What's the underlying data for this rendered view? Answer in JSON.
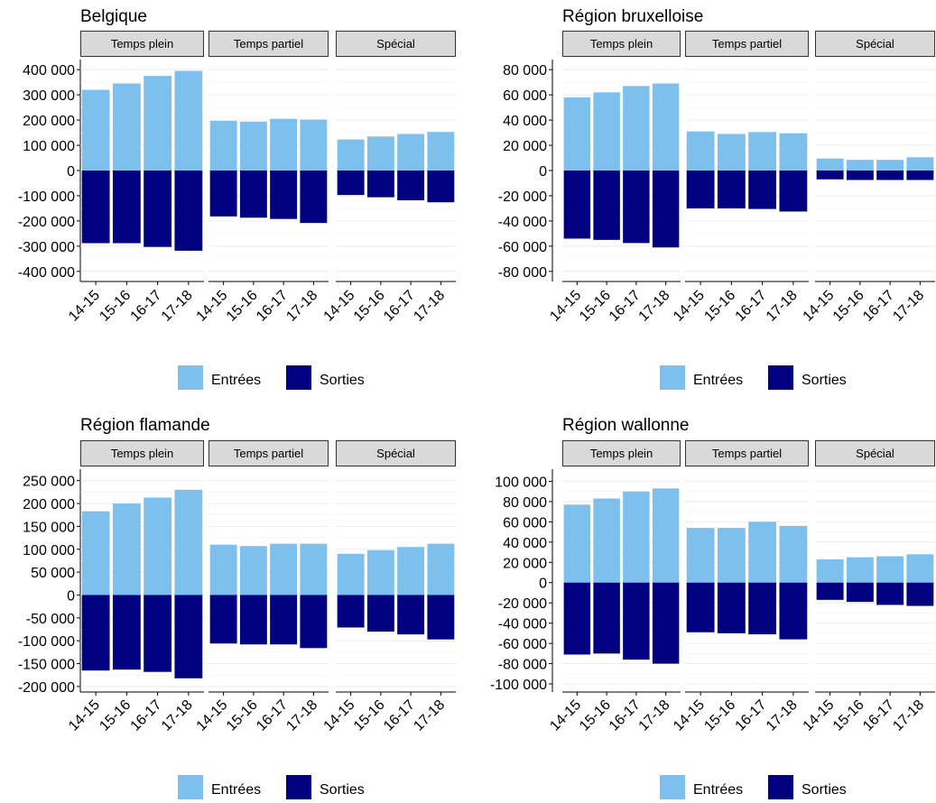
{
  "chart_data": [
    {
      "type": "bar",
      "title": "Belgique",
      "panels": [
        "Temps plein",
        "Temps partiel",
        "Spécial"
      ],
      "categories": [
        "14-15",
        "15-16",
        "16-17",
        "17-18"
      ],
      "ylim": [
        -440000,
        440000
      ],
      "yticks": [
        400000,
        300000,
        200000,
        100000,
        0,
        -100000,
        -200000,
        -300000,
        -400000
      ],
      "ytick_labels": [
        "400 000",
        "300 000",
        "200 000",
        "100 000",
        "0",
        "-100 000",
        "-200 000",
        "-300 000",
        "-400 000"
      ],
      "series": [
        {
          "name": "Entrées",
          "color": "#7dc0ee",
          "values": [
            [
              320000,
              345000,
              375000,
              395000
            ],
            [
              197000,
              194000,
              205000,
              202000
            ],
            [
              123000,
              135000,
              145000,
              153000
            ]
          ]
        },
        {
          "name": "Sorties",
          "color": "#000080",
          "values": [
            [
              -288000,
              -288000,
              -303000,
              -318000
            ],
            [
              -182000,
              -187000,
              -192000,
              -208000
            ],
            [
              -97000,
              -106000,
              -118000,
              -126000
            ]
          ]
        }
      ],
      "legend_position": "bottom"
    },
    {
      "type": "bar",
      "title": "Région bruxelloise",
      "panels": [
        "Temps plein",
        "Temps partiel",
        "Spécial"
      ],
      "categories": [
        "14-15",
        "15-16",
        "16-17",
        "17-18"
      ],
      "ylim": [
        -88000,
        88000
      ],
      "yticks": [
        80000,
        60000,
        40000,
        20000,
        0,
        -20000,
        -40000,
        -60000,
        -80000
      ],
      "ytick_labels": [
        "80 000",
        "60 000",
        "40 000",
        "20 000",
        "0",
        "-20 000",
        "-40 000",
        "-60 000",
        "-80 000"
      ],
      "series": [
        {
          "name": "Entrées",
          "color": "#7dc0ee",
          "values": [
            [
              58000,
              62000,
              67000,
              69000
            ],
            [
              31000,
              29000,
              30500,
              29500
            ],
            [
              9500,
              8500,
              8500,
              10500
            ]
          ]
        },
        {
          "name": "Sorties",
          "color": "#000080",
          "values": [
            [
              -54000,
              -55000,
              -57500,
              -61000
            ],
            [
              -30000,
              -30000,
              -30500,
              -32500
            ],
            [
              -7000,
              -7500,
              -7500,
              -7500
            ]
          ]
        }
      ],
      "legend_position": "bottom"
    },
    {
      "type": "bar",
      "title": "Région flamande",
      "panels": [
        "Temps plein",
        "Temps partiel",
        "Spécial"
      ],
      "categories": [
        "14-15",
        "15-16",
        "16-17",
        "17-18"
      ],
      "ylim": [
        -212000,
        275000
      ],
      "yticks": [
        250000,
        200000,
        150000,
        100000,
        50000,
        0,
        -50000,
        -100000,
        -150000,
        -200000
      ],
      "ytick_labels": [
        "250 000",
        "200 000",
        "150 000",
        "100 000",
        "50 000",
        "0",
        "-50 000",
        "-100 000",
        "-150 000",
        "-200 000"
      ],
      "series": [
        {
          "name": "Entrées",
          "color": "#7dc0ee",
          "values": [
            [
              183000,
              200000,
              213000,
              230000
            ],
            [
              110000,
              107000,
              112000,
              112000
            ],
            [
              90000,
              98000,
              105000,
              112000
            ]
          ]
        },
        {
          "name": "Sorties",
          "color": "#000080",
          "values": [
            [
              -165000,
              -163000,
              -168000,
              -182000
            ],
            [
              -106000,
              -108000,
              -108000,
              -116000
            ],
            [
              -71000,
              -80000,
              -86000,
              -97000
            ]
          ]
        }
      ],
      "legend_position": "bottom"
    },
    {
      "type": "bar",
      "title": "Région wallonne",
      "panels": [
        "Temps plein",
        "Temps partiel",
        "Spécial"
      ],
      "categories": [
        "14-15",
        "15-16",
        "16-17",
        "17-18"
      ],
      "ylim": [
        -108000,
        112000
      ],
      "yticks": [
        100000,
        80000,
        60000,
        40000,
        20000,
        0,
        -20000,
        -40000,
        -60000,
        -80000,
        -100000
      ],
      "ytick_labels": [
        "100 000",
        "80 000",
        "60 000",
        "40 000",
        "20 000",
        "0",
        "-20 000",
        "-40 000",
        "-60 000",
        "-80 000",
        "-100 000"
      ],
      "series": [
        {
          "name": "Entrées",
          "color": "#7dc0ee",
          "values": [
            [
              77000,
              83000,
              90000,
              93000
            ],
            [
              54000,
              54000,
              60000,
              56000
            ],
            [
              23000,
              25000,
              26000,
              28000
            ]
          ]
        },
        {
          "name": "Sorties",
          "color": "#000080",
          "values": [
            [
              -71000,
              -70000,
              -76000,
              -80000
            ],
            [
              -49000,
              -50000,
              -51000,
              -56000
            ],
            [
              -17000,
              -19000,
              -22000,
              -23000
            ]
          ]
        }
      ],
      "legend_position": "bottom"
    }
  ]
}
